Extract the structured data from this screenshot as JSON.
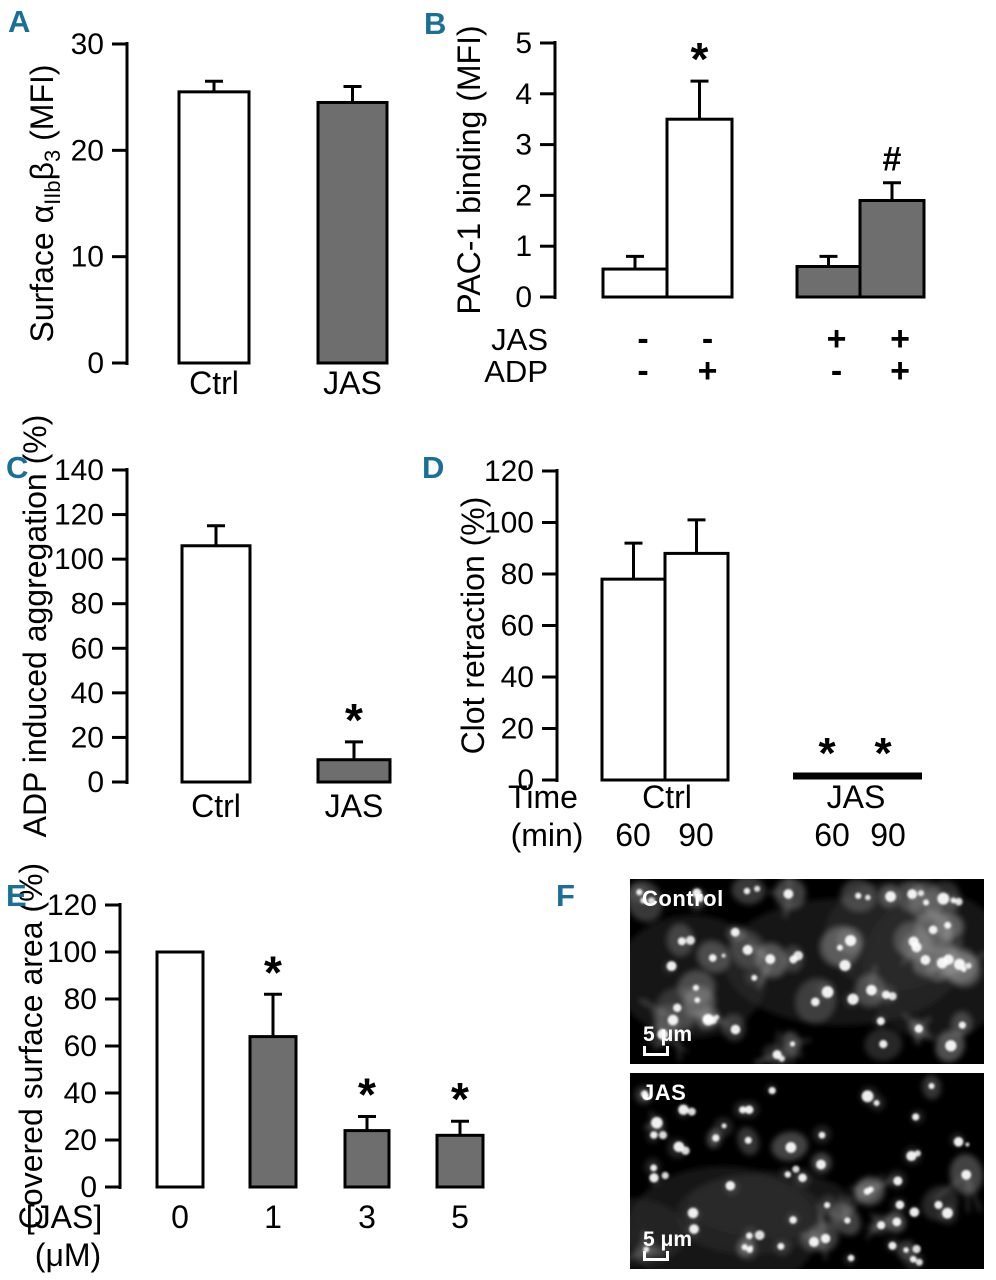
{
  "figure": {
    "background": "#ffffff",
    "accent_color": "#1a6f99",
    "bar_gray_color": "#6e6e6e",
    "bar_outline_color": "#000000"
  },
  "panels": {
    "A": {
      "label": "A"
    },
    "B": {
      "label": "B"
    },
    "C": {
      "label": "C"
    },
    "D": {
      "label": "D"
    },
    "E": {
      "label": "E"
    },
    "F": {
      "label": "F",
      "images": [
        {
          "label": "Control",
          "scale_label": "5 μm"
        },
        {
          "label": "JAS",
          "scale_label": "5 μm"
        }
      ]
    }
  },
  "chart_data": [
    {
      "panel": "A",
      "type": "bar",
      "ylabel": "Surface αIIbβ3 (MFI)",
      "ylabel_segments": [
        {
          "text": "Surface α"
        },
        {
          "text": "IIb",
          "sub": true
        },
        {
          "text": "β"
        },
        {
          "text": "3",
          "sub": true
        },
        {
          "text": " (MFI)"
        }
      ],
      "ylim": [
        0,
        30
      ],
      "yticks": [
        0,
        10,
        20,
        30
      ],
      "categories": [
        "Ctrl",
        "JAS"
      ],
      "values": [
        25.5,
        24.5
      ],
      "errors": [
        1.0,
        1.5
      ],
      "bar_colors": [
        "white",
        "gray"
      ],
      "annotations": [
        "",
        ""
      ]
    },
    {
      "panel": "B",
      "type": "bar",
      "ylabel": "PAC-1 binding (MFI)",
      "ylim": [
        0,
        5
      ],
      "yticks": [
        0,
        1,
        2,
        3,
        4,
        5
      ],
      "values": [
        0.55,
        3.5,
        0.6,
        1.9
      ],
      "errors": [
        0.25,
        0.75,
        0.2,
        0.35
      ],
      "bar_colors": [
        "white",
        "white",
        "gray",
        "gray"
      ],
      "annotations": [
        "",
        "*",
        "",
        "#"
      ],
      "condition_rows": [
        {
          "header": "JAS",
          "signs": [
            "-",
            "-",
            "+",
            "+"
          ]
        },
        {
          "header": "ADP",
          "signs": [
            "-",
            "+",
            "-",
            "+"
          ]
        }
      ]
    },
    {
      "panel": "C",
      "type": "bar",
      "ylabel": "ADP induced aggregation (%)",
      "ylim": [
        0,
        140
      ],
      "yticks": [
        0,
        20,
        40,
        60,
        80,
        100,
        120,
        140
      ],
      "categories": [
        "Ctrl",
        "JAS"
      ],
      "values": [
        106,
        10
      ],
      "errors": [
        9,
        8
      ],
      "bar_colors": [
        "white",
        "gray"
      ],
      "annotations": [
        "",
        "*"
      ]
    },
    {
      "panel": "D",
      "type": "bar",
      "ylabel": "Clot retraction (%)",
      "ylim": [
        0,
        120
      ],
      "yticks": [
        0,
        20,
        40,
        60,
        80,
        100,
        120
      ],
      "x_header": [
        "Time",
        "(min)"
      ],
      "groups": [
        {
          "label": "Ctrl",
          "sublabels": [
            "60",
            "90"
          ],
          "values": [
            78,
            88
          ],
          "errors": [
            14,
            13
          ],
          "bar_colors": [
            "white",
            "white"
          ],
          "annotations": [
            "",
            ""
          ],
          "zero_line": false
        },
        {
          "label": "JAS",
          "sublabels": [
            "60",
            "90"
          ],
          "values": [
            0,
            0
          ],
          "errors": [
            0,
            0
          ],
          "bar_colors": [],
          "annotations": [
            "*",
            "*"
          ],
          "zero_line": true
        }
      ]
    },
    {
      "panel": "E",
      "type": "bar",
      "ylabel": "Covered surface area (%)",
      "ylim": [
        0,
        120
      ],
      "yticks": [
        0,
        20,
        40,
        60,
        80,
        100,
        120
      ],
      "x_header": [
        "[JAS]",
        "(μM)"
      ],
      "categories": [
        "0",
        "1",
        "3",
        "5"
      ],
      "values": [
        100,
        64,
        24,
        22
      ],
      "errors": [
        0,
        18,
        6,
        6
      ],
      "bar_colors": [
        "white",
        "gray",
        "gray",
        "gray"
      ],
      "annotations": [
        "",
        "*",
        "*",
        "*"
      ]
    }
  ]
}
